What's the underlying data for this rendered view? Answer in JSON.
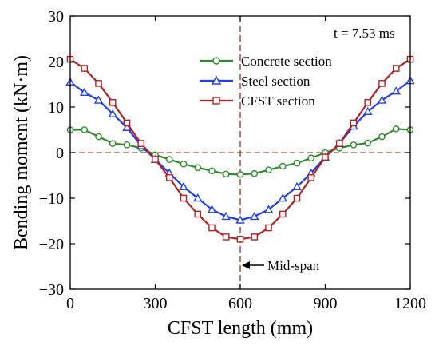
{
  "chart_data": {
    "type": "line",
    "xlabel": "CFST length (mm)",
    "ylabel": "Bending moment (kN·m)",
    "xlim": [
      0,
      1200
    ],
    "ylim": [
      -30,
      30
    ],
    "xticks": [
      0,
      300,
      600,
      900,
      1200
    ],
    "yticks": [
      30,
      20,
      10,
      0,
      -10,
      -20,
      -30
    ],
    "grid": false,
    "legend_position": "top-right",
    "annotations": {
      "time": "t = 7.53 ms",
      "midspan": "Mid-span"
    },
    "reference_lines": {
      "horizontal_y": 0,
      "vertical_x": 600
    },
    "x": [
      0,
      50,
      100,
      150,
      200,
      250,
      300,
      350,
      400,
      450,
      500,
      550,
      600,
      650,
      700,
      750,
      800,
      850,
      900,
      950,
      1000,
      1050,
      1100,
      1150,
      1200
    ],
    "series": [
      {
        "name": "Concrete section",
        "color": "#2e8b2e",
        "marker": "circle",
        "values": [
          5.0,
          5.0,
          3.5,
          2.0,
          1.7,
          1.0,
          -0.5,
          -1.5,
          -2.5,
          -3.3,
          -4.0,
          -4.7,
          -4.8,
          -4.6,
          -3.8,
          -3.0,
          -2.3,
          -1.2,
          0.0,
          1.0,
          1.7,
          2.1,
          3.5,
          5.2,
          5.0
        ]
      },
      {
        "name": "Steel section",
        "color": "#1f3fe0",
        "marker": "triangle",
        "values": [
          15.5,
          13.2,
          11.5,
          8.5,
          5.5,
          1.5,
          -1.5,
          -4.5,
          -7.5,
          -10.0,
          -12.5,
          -14.0,
          -14.8,
          -14.0,
          -12.5,
          -10.0,
          -7.5,
          -4.5,
          -1.0,
          2.0,
          5.8,
          9.0,
          11.5,
          13.5,
          15.8
        ]
      },
      {
        "name": "CFST section",
        "color": "#b22222",
        "marker": "square",
        "values": [
          20.5,
          18.5,
          15.2,
          11.0,
          6.5,
          2.0,
          -1.5,
          -5.5,
          -10.0,
          -13.5,
          -16.5,
          -18.5,
          -19.0,
          -18.5,
          -16.5,
          -13.5,
          -10.0,
          -5.5,
          -1.0,
          2.0,
          6.5,
          11.0,
          15.2,
          18.5,
          20.5
        ]
      }
    ]
  }
}
